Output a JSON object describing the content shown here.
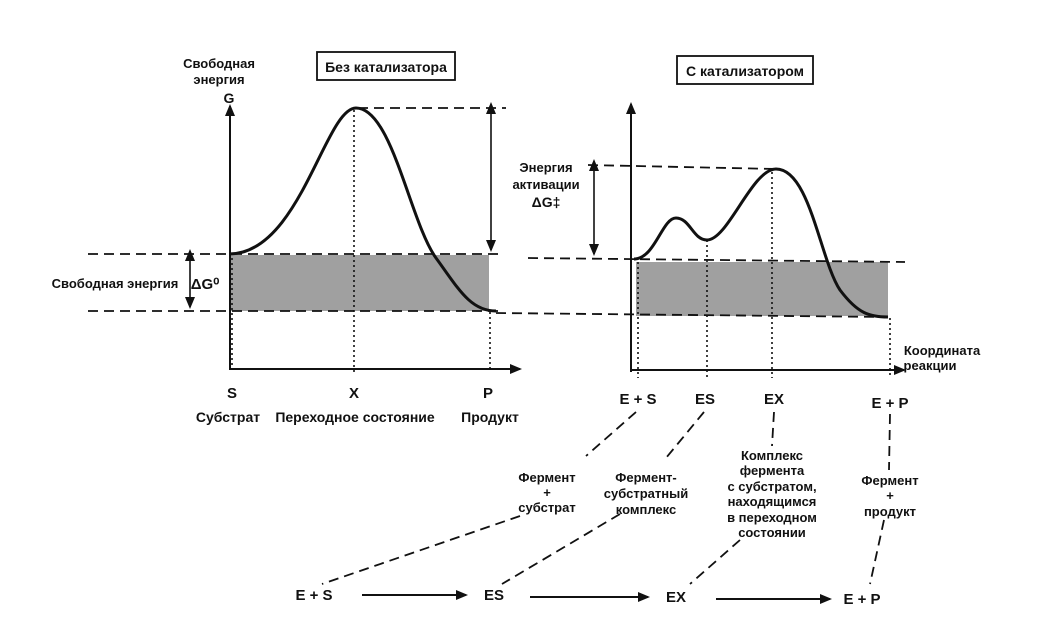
{
  "left_panel": {
    "title": "Без катализатора",
    "y_axis_label_line1": "Свободная",
    "y_axis_label_line2": "энергия",
    "y_axis_symbol": "G",
    "free_energy_label": "Свободная энергия",
    "delta_g": "ΔG⁰",
    "tick_s": "S",
    "tick_x": "X",
    "tick_p": "P",
    "label_substrate": "Субстрат",
    "label_transition": "Переходное состояние",
    "label_product": "Продукт"
  },
  "right_panel": {
    "title": "С катализатором",
    "activation_line1": "Энергия",
    "activation_line2": "активации",
    "activation_symbol": "ΔG‡",
    "x_axis_label_line1": "Координата",
    "x_axis_label_line2": "реакции",
    "tick_es_start": "E + S",
    "tick_es": "ES",
    "tick_ex": "EX",
    "tick_ep": "E + P"
  },
  "explanations": {
    "enzyme_substrate_line1": "Фермент",
    "enzyme_substrate_line2": "+",
    "enzyme_substrate_line3": "субстрат",
    "complex_line1": "Фермент-",
    "complex_line2": "субстратный",
    "complex_line3": "комплекс",
    "transition_complex_line1": "Комплекс",
    "transition_complex_line2": "фермента",
    "transition_complex_line3": "с субстратом,",
    "transition_complex_line4": "находящимся",
    "transition_complex_line5": "в переходном",
    "transition_complex_line6": "состоянии",
    "enzyme_product_line1": "Фермент",
    "enzyme_product_line2": "+",
    "enzyme_product_line3": "продукт"
  },
  "reaction_sequence": {
    "step1": "E + S",
    "step2": "ES",
    "step3": "EX",
    "step4": "E + P"
  }
}
